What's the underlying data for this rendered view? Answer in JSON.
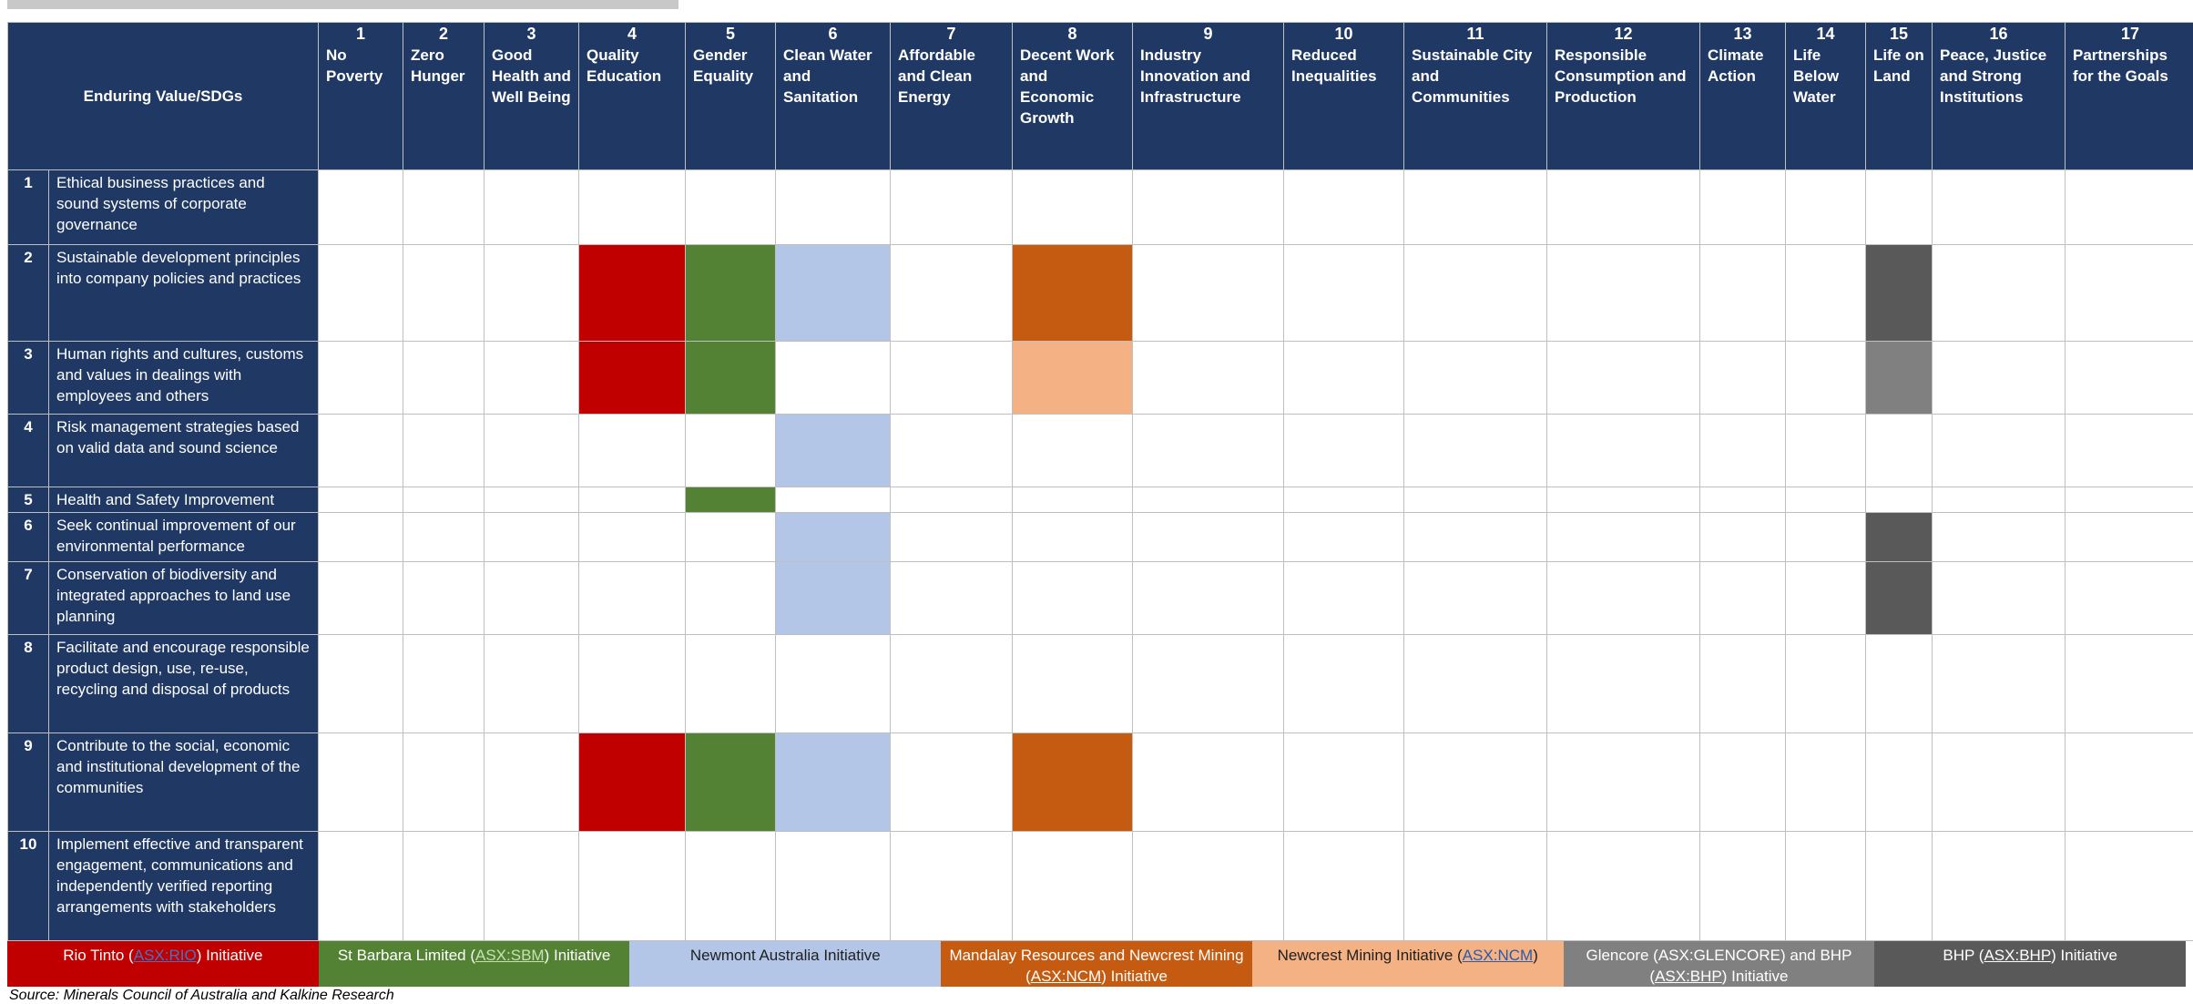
{
  "corner_label": "Enduring Value/SDGs",
  "sdgs": [
    {
      "num": "1",
      "name": "No Poverty"
    },
    {
      "num": "2",
      "name": "Zero Hunger"
    },
    {
      "num": "3",
      "name": "Good Health and Well Being"
    },
    {
      "num": "4",
      "name": "Quality Education"
    },
    {
      "num": "5",
      "name": "Gender Equality"
    },
    {
      "num": "6",
      "name": "Clean Water and Sanitation"
    },
    {
      "num": "7",
      "name": "Affordable and Clean Energy"
    },
    {
      "num": "8",
      "name": "Decent Work and Economic Growth"
    },
    {
      "num": "9",
      "name": "Industry Innovation and Infrastructure"
    },
    {
      "num": "10",
      "name": "Reduced Inequalities"
    },
    {
      "num": "11",
      "name": "Sustainable City and Communities"
    },
    {
      "num": "12",
      "name": "Responsible Consumption and Production"
    },
    {
      "num": "13",
      "name": "Climate Action"
    },
    {
      "num": "14",
      "name": "Life Below Water"
    },
    {
      "num": "15",
      "name": "Life on Land"
    },
    {
      "num": "16",
      "name": "Peace, Justice and Strong Institutions"
    },
    {
      "num": "17",
      "name": "Partnerships for the Goals"
    }
  ],
  "rows": [
    {
      "num": "1",
      "text": "Ethical business practices and sound systems of corporate governance",
      "cells": {}
    },
    {
      "num": "2",
      "text": "Sustainable development principles into company policies and practices",
      "cells": {
        "4": "red",
        "5": "green",
        "6": "blue",
        "8": "orange",
        "15": "dark"
      }
    },
    {
      "num": "3",
      "text": "Human rights and cultures, customs and values in dealings with employees and others",
      "cells": {
        "4": "red",
        "5": "green",
        "8": "peach",
        "15": "grey"
      }
    },
    {
      "num": "4",
      "text": "Risk management strategies based on valid data and sound science",
      "cells": {
        "6": "blue"
      }
    },
    {
      "num": "5",
      "text": "Health and Safety Improvement",
      "cells": {
        "5": "green"
      }
    },
    {
      "num": "6",
      "text": "Seek continual improvement of our environmental performance",
      "cells": {
        "6": "blue",
        "15": "dark"
      }
    },
    {
      "num": "7",
      "text": "Conservation of biodiversity and integrated approaches to land use planning",
      "cells": {
        "6": "blue",
        "15": "dark"
      }
    },
    {
      "num": "8",
      "text": "Facilitate and encourage responsible product design, use, re-use, recycling and disposal of products",
      "cells": {}
    },
    {
      "num": "9",
      "text": "Contribute to the social, economic and institutional development of the communities",
      "cells": {
        "4": "red",
        "5": "green",
        "6": "blue",
        "8": "orange"
      }
    },
    {
      "num": "10",
      "text": "Implement effective and transparent engagement, communications and independently verified reporting arrangements with stakeholders",
      "cells": {}
    }
  ],
  "legend": [
    {
      "key": "red",
      "pre": "Rio Tinto (",
      "link": "ASX:RIO",
      "post": ") Initiative",
      "color": "#c00000"
    },
    {
      "key": "green",
      "pre": "St Barbara Limited (",
      "link": "ASX:SBM",
      "post": ") Initiative",
      "color": "#548235"
    },
    {
      "key": "blue",
      "pre": "Newmont Australia Initiative",
      "link": "",
      "post": "",
      "color": "#b4c6e7"
    },
    {
      "key": "orange",
      "pre": "Mandalay Resources and Newcrest Mining (",
      "link": "ASX:NCM",
      "post": ") Initiative",
      "color": "#c55a11"
    },
    {
      "key": "peach",
      "pre": "Newcrest Mining Initiative (",
      "link": "ASX:NCM",
      "post": ")",
      "color": "#f4b183"
    },
    {
      "key": "grey",
      "pre": "Glencore (ASX:GLENCORE) and BHP (",
      "link": "ASX:BHP",
      "post": ") Initiative",
      "color": "#808080"
    },
    {
      "key": "dark",
      "pre": "BHP (",
      "link": "ASX:BHP",
      "post": ")  Initiative",
      "color": "#595959"
    }
  ],
  "source": "Source: Minerals Council of Australia and Kalkine Research"
}
